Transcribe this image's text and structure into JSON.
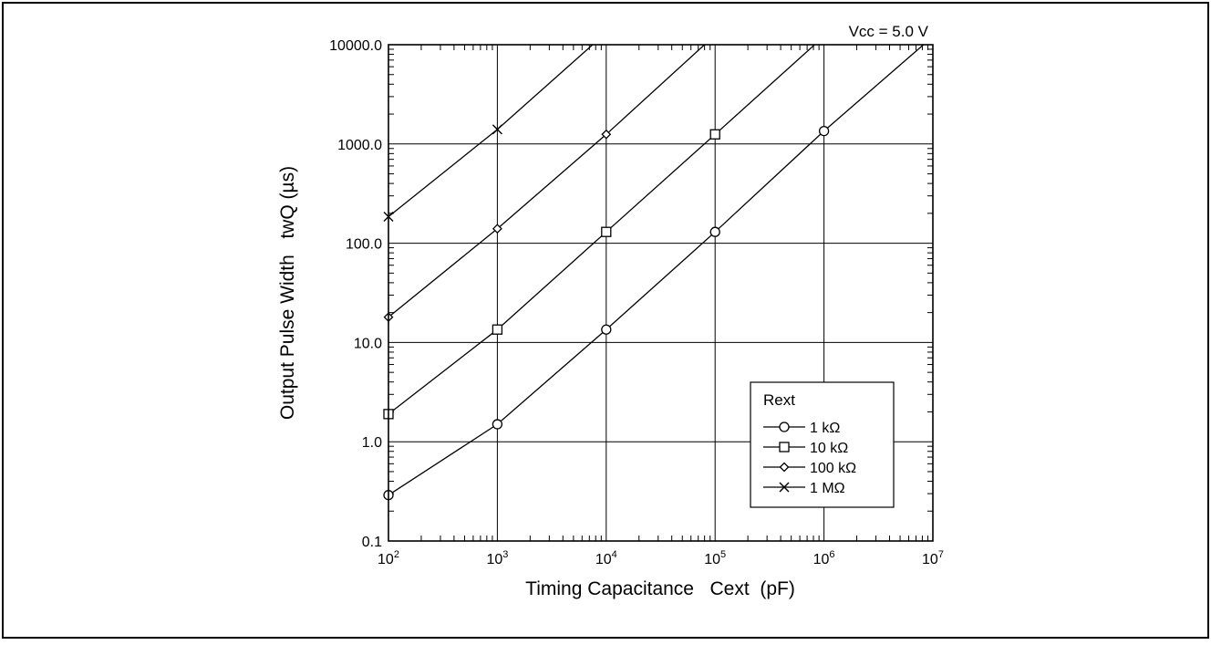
{
  "chart_data": {
    "type": "line",
    "annotation": "Vcc = 5.0 V",
    "xlabel": "Timing Capacitance   Cext  (pF)",
    "ylabel": "Output Pulse Width   twQ (µs)",
    "x_scale": "log",
    "y_scale": "log",
    "xlim": [
      100,
      10000000
    ],
    "ylim": [
      0.1,
      10000
    ],
    "x_tick_values": [
      100,
      1000,
      10000,
      100000,
      1000000,
      10000000
    ],
    "x_tick_labels": [
      {
        "base": "10",
        "exp": "2"
      },
      {
        "base": "10",
        "exp": "3"
      },
      {
        "base": "10",
        "exp": "4"
      },
      {
        "base": "10",
        "exp": "5"
      },
      {
        "base": "10",
        "exp": "6"
      },
      {
        "base": "10",
        "exp": "7"
      }
    ],
    "y_tick_values": [
      0.1,
      1,
      10,
      100,
      1000,
      10000
    ],
    "y_tick_labels": [
      "0.1",
      "1.0",
      "10.0",
      "100.0",
      "1000.0",
      "10000.0"
    ],
    "grid": true,
    "legend_title": "Rext",
    "legend_position": "bottom-right",
    "series": [
      {
        "name": "1 kΩ",
        "marker": "circle",
        "points": [
          [
            100,
            0.29
          ],
          [
            1000,
            1.5
          ],
          [
            10000,
            13.5
          ],
          [
            100000,
            130
          ],
          [
            1000000,
            1350
          ],
          [
            8200000,
            10000
          ]
        ]
      },
      {
        "name": "10 kΩ",
        "marker": "square",
        "points": [
          [
            100,
            1.9
          ],
          [
            1000,
            13.5
          ],
          [
            10000,
            130
          ],
          [
            100000,
            1250
          ],
          [
            820000,
            10000
          ]
        ]
      },
      {
        "name": "100 kΩ",
        "marker": "diamond",
        "points": [
          [
            100,
            18
          ],
          [
            1000,
            140
          ],
          [
            10000,
            1250
          ],
          [
            80000,
            10000
          ]
        ]
      },
      {
        "name": "1 MΩ",
        "marker": "x",
        "points": [
          [
            100,
            185
          ],
          [
            1000,
            1400
          ],
          [
            7500,
            10000
          ]
        ]
      }
    ]
  }
}
